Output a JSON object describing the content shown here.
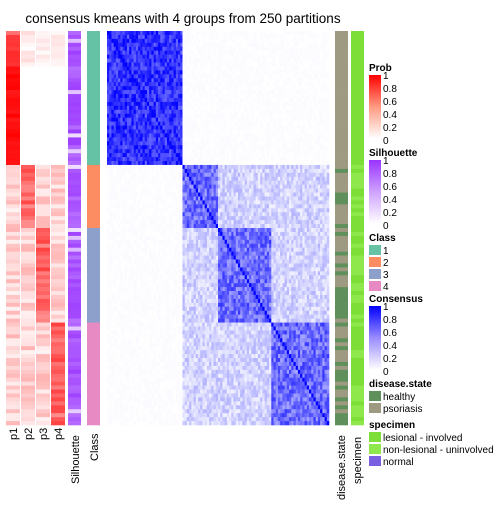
{
  "chart_data": {
    "type": "heatmap",
    "title": "consensus kmeans with 4 groups from 250 partitions",
    "group_sizes": [
      34,
      16,
      24,
      26
    ],
    "columns": {
      "prob": [
        "p1",
        "p2",
        "p3",
        "p4"
      ],
      "silhouette": "Silhouette",
      "class": "Class",
      "disease": "disease.state",
      "specimen": "specimen"
    },
    "legends": {
      "prob": {
        "title": "Prob",
        "ticks": [
          "1",
          "0.8",
          "0.6",
          "0.4",
          "0.2",
          "0"
        ],
        "color_high": "#ff0000",
        "color_low": "#ffffff"
      },
      "silhouette": {
        "title": "Silhouette",
        "ticks": [
          "1",
          "0.8",
          "0.6",
          "0.4",
          "0.2",
          "0"
        ],
        "color_high": "#9933ff",
        "color_low": "#ffffff"
      },
      "class": {
        "title": "Class",
        "items": [
          {
            "label": "1",
            "color": "#66c2a5"
          },
          {
            "label": "2",
            "color": "#fc8d62"
          },
          {
            "label": "3",
            "color": "#8da0cb"
          },
          {
            "label": "4",
            "color": "#e78ac3"
          }
        ]
      },
      "consensus": {
        "title": "Consensus",
        "ticks": [
          "1",
          "0.8",
          "0.6",
          "0.4",
          "0.2",
          "0"
        ],
        "color_high": "#0000ff",
        "color_low": "#ffffff"
      },
      "disease": {
        "title": "disease.state",
        "items": [
          {
            "label": "healthy",
            "color": "#5f8f5a"
          },
          {
            "label": "psoriasis",
            "color": "#9e9a82"
          }
        ]
      },
      "specimen": {
        "title": "specimen",
        "items": [
          {
            "label": "lesional - involved",
            "color": "#7cde36"
          },
          {
            "label": "non-lesional - uninvolved",
            "color": "#8ee84c"
          },
          {
            "label": "normal",
            "color": "#7a5fe0"
          }
        ]
      }
    }
  }
}
